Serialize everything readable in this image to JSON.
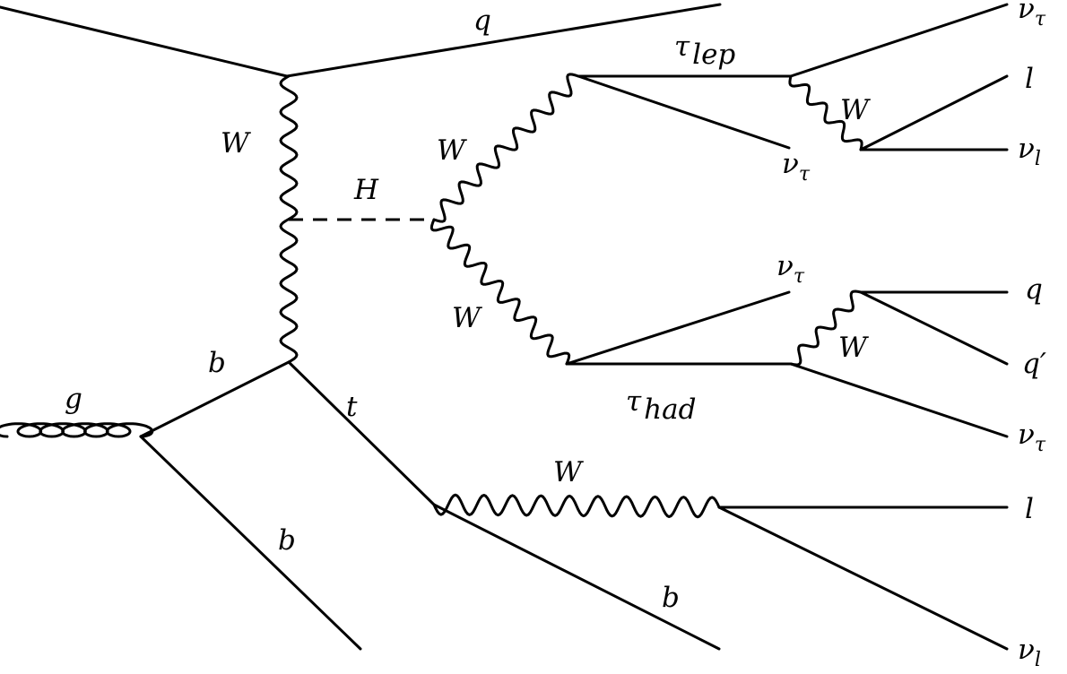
{
  "labels": {
    "q_top": "q",
    "W_t": "W",
    "H": "H",
    "W_upper": "W",
    "W_lower": "W",
    "tau_lep": "τ",
    "tau_lep_sub": "lep",
    "tau_had": "τ",
    "tau_had_sub": "had",
    "nu_tau_a": "ν",
    "nu_tau_a_sub": "τ",
    "W_lep": "W",
    "l_a": "l",
    "nu_l_a": "ν",
    "nu_l_a_sub": "l",
    "nu_tau_b": "ν",
    "nu_tau_b_sub": "τ",
    "nu_tau_c": "ν",
    "nu_tau_c_sub": "τ",
    "W_had": "W",
    "q_a": "q",
    "q_prime": "q′",
    "nu_tau_d": "ν",
    "nu_tau_d_sub": "τ",
    "b_upper": "b",
    "g": "g",
    "t": "t",
    "b_lower": "b",
    "W_top": "W",
    "l_b": "l",
    "b_right": "b",
    "nu_l_b": "ν",
    "nu_l_b_sub": "l"
  }
}
